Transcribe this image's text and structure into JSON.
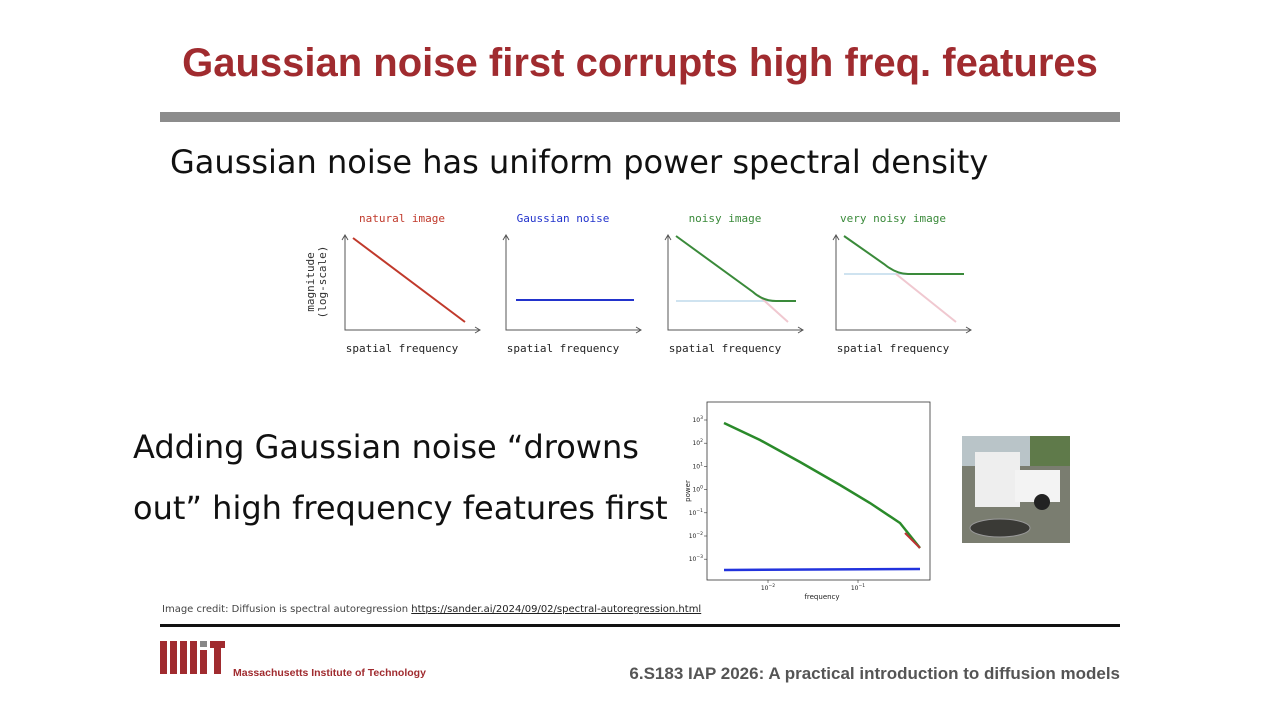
{
  "title": "Gaussian noise first corrupts high freq. features",
  "subtitle": "Gaussian noise has uniform power spectral density",
  "panels": [
    {
      "title": "natural image",
      "xlabel": "spatial frequency"
    },
    {
      "title": "Gaussian noise",
      "xlabel": "spatial frequency"
    },
    {
      "title": "noisy image",
      "xlabel": "spatial frequency"
    },
    {
      "title": "very noisy image",
      "xlabel": "spatial frequency"
    }
  ],
  "panel_ylabel": [
    "magnitude",
    "(log-scale)"
  ],
  "body": [
    "Adding Gaussian noise “drowns",
    "out” high frequency features first"
  ],
  "plot": {
    "ylabel": "power",
    "xlabel": "frequency",
    "yticks": [
      {
        "base": "10",
        "exp": "3"
      },
      {
        "base": "10",
        "exp": "2"
      },
      {
        "base": "10",
        "exp": "1"
      },
      {
        "base": "10",
        "exp": "0"
      },
      {
        "base": "10",
        "exp": "−1"
      },
      {
        "base": "10",
        "exp": "−2"
      },
      {
        "base": "10",
        "exp": "−3"
      }
    ],
    "xticks": [
      {
        "base": "10",
        "exp": "−2"
      },
      {
        "base": "10",
        "exp": "−1"
      }
    ]
  },
  "credit": {
    "text": "Image credit: Diffusion is spectral autoregression ",
    "link": "https://sander.ai/2024/09/02/spectral-autoregression.html"
  },
  "footer": {
    "logo_text": "Massachusetts Institute of Technology",
    "course": "6.S183 IAP 2026: A practical introduction to diffusion models"
  }
}
